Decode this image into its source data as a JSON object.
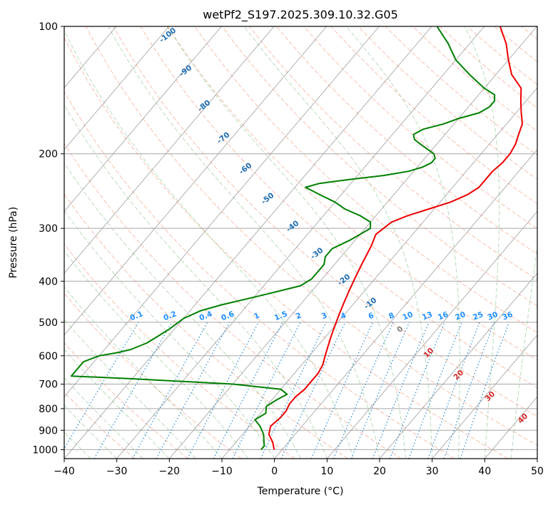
{
  "chart_data": {
    "type": "line",
    "title": "wetPf2_S197.2025.309.10.32.G05",
    "xlabel": "Temperature (°C)",
    "ylabel": "Pressure (hPa)",
    "xlim": [
      -40,
      50
    ],
    "ylim": [
      1050,
      100
    ],
    "y_scale": "log",
    "grid": true,
    "x_ticks": [
      "−40",
      "−30",
      "−20",
      "−10",
      "0",
      "10",
      "20",
      "30",
      "40",
      "50"
    ],
    "y_ticks": [
      "100",
      "200",
      "300",
      "400",
      "500",
      "600",
      "700",
      "800",
      "900",
      "1000"
    ],
    "series": [
      {
        "color": "#ee0000",
        "points": [
          [
            -1.5,
            1000
          ],
          [
            -3,
            960
          ],
          [
            -5,
            920
          ],
          [
            -6,
            880
          ],
          [
            -5.5,
            840
          ],
          [
            -5.5,
            810
          ],
          [
            -6,
            780
          ],
          [
            -6,
            750
          ],
          [
            -5.5,
            720
          ],
          [
            -5.5,
            690
          ],
          [
            -5.5,
            660
          ],
          [
            -6,
            630
          ],
          [
            -7,
            600
          ],
          [
            -8,
            570
          ],
          [
            -9,
            540
          ],
          [
            -10,
            510
          ],
          [
            -11,
            480
          ],
          [
            -12,
            450
          ],
          [
            -13,
            420
          ],
          [
            -14,
            390
          ],
          [
            -15,
            360
          ],
          [
            -16,
            330
          ],
          [
            -17,
            310
          ],
          [
            -16.5,
            300
          ],
          [
            -16,
            290
          ],
          [
            -14,
            280
          ],
          [
            -11,
            270
          ],
          [
            -8,
            260
          ],
          [
            -6,
            250
          ],
          [
            -5,
            240
          ],
          [
            -5,
            230
          ],
          [
            -5,
            220
          ],
          [
            -4.5,
            210
          ],
          [
            -4.5,
            200
          ],
          [
            -5,
            190
          ],
          [
            -6,
            180
          ],
          [
            -7,
            170
          ],
          [
            -9,
            160
          ],
          [
            -11,
            150
          ],
          [
            -13,
            140
          ],
          [
            -17,
            130
          ],
          [
            -20,
            120
          ],
          [
            -23,
            110
          ],
          [
            -27,
            100
          ]
        ]
      },
      {
        "color": "#008000",
        "points": [
          [
            -4,
            1000
          ],
          [
            -4,
            980
          ],
          [
            -5,
            950
          ],
          [
            -6,
            920
          ],
          [
            -8,
            880
          ],
          [
            -10,
            850
          ],
          [
            -9,
            820
          ],
          [
            -10,
            790
          ],
          [
            -9,
            760
          ],
          [
            -8,
            740
          ],
          [
            -10,
            720
          ],
          [
            -20,
            700
          ],
          [
            -40,
            680
          ],
          [
            -52,
            670
          ],
          [
            -52,
            620
          ],
          [
            -50,
            600
          ],
          [
            -47,
            590
          ],
          [
            -45,
            580
          ],
          [
            -43,
            560
          ],
          [
            -42,
            540
          ],
          [
            -41,
            520
          ],
          [
            -40,
            490
          ],
          [
            -38,
            470
          ],
          [
            -35,
            455
          ],
          [
            -31,
            440
          ],
          [
            -27,
            425
          ],
          [
            -23,
            410
          ],
          [
            -22,
            395
          ],
          [
            -22,
            380
          ],
          [
            -22,
            365
          ],
          [
            -23,
            350
          ],
          [
            -23,
            335
          ],
          [
            -21,
            320
          ],
          [
            -20,
            310
          ],
          [
            -19,
            300
          ],
          [
            -20,
            290
          ],
          [
            -23,
            280
          ],
          [
            -27,
            270
          ],
          [
            -30,
            260
          ],
          [
            -34,
            250
          ],
          [
            -38,
            240
          ],
          [
            -36,
            235
          ],
          [
            -31,
            230
          ],
          [
            -25,
            225
          ],
          [
            -21,
            220
          ],
          [
            -19,
            215
          ],
          [
            -18,
            210
          ],
          [
            -18,
            205
          ],
          [
            -19,
            200
          ],
          [
            -21,
            195
          ],
          [
            -23,
            190
          ],
          [
            -25,
            185
          ],
          [
            -26,
            180
          ],
          [
            -25,
            175
          ],
          [
            -22,
            170
          ],
          [
            -20,
            165
          ],
          [
            -17,
            160
          ],
          [
            -16,
            155
          ],
          [
            -16,
            150
          ],
          [
            -17,
            145
          ],
          [
            -20,
            140
          ],
          [
            -25,
            130
          ],
          [
            -30,
            120
          ],
          [
            -34,
            110
          ],
          [
            -39,
            100
          ]
        ]
      }
    ],
    "isotherm_labels": {
      "values": [
        "-100",
        "-90",
        "-80",
        "-70",
        "-60",
        "-50",
        "-40",
        "-30",
        "-20",
        "-10"
      ],
      "color": "#1f6eb0"
    },
    "mixing_ratio_labels": {
      "values": [
        "0.1",
        "0.2",
        "0.4",
        "0.6",
        "1",
        "1.5",
        "2",
        "3",
        "4",
        "6",
        "8",
        "10",
        "13",
        "16",
        "20",
        "25",
        "30",
        "36"
      ],
      "color": "#1e90ff"
    },
    "moist_adiabat_labels": {
      "values": [
        "0",
        "10",
        "20",
        "30",
        "40"
      ],
      "colors": [
        "#808080",
        "#d62728",
        "#d62728",
        "#d62728",
        "#d62728"
      ]
    },
    "colors": {
      "isotherm": "#8c8c8c",
      "isobar": "#a8a8a8",
      "dry_adiabat": "#f5a58a",
      "moist_adiabat": "#9ccf9c",
      "mixing_ratio": "#2a8ad8",
      "outer_arc": "#d8bb9a"
    }
  }
}
